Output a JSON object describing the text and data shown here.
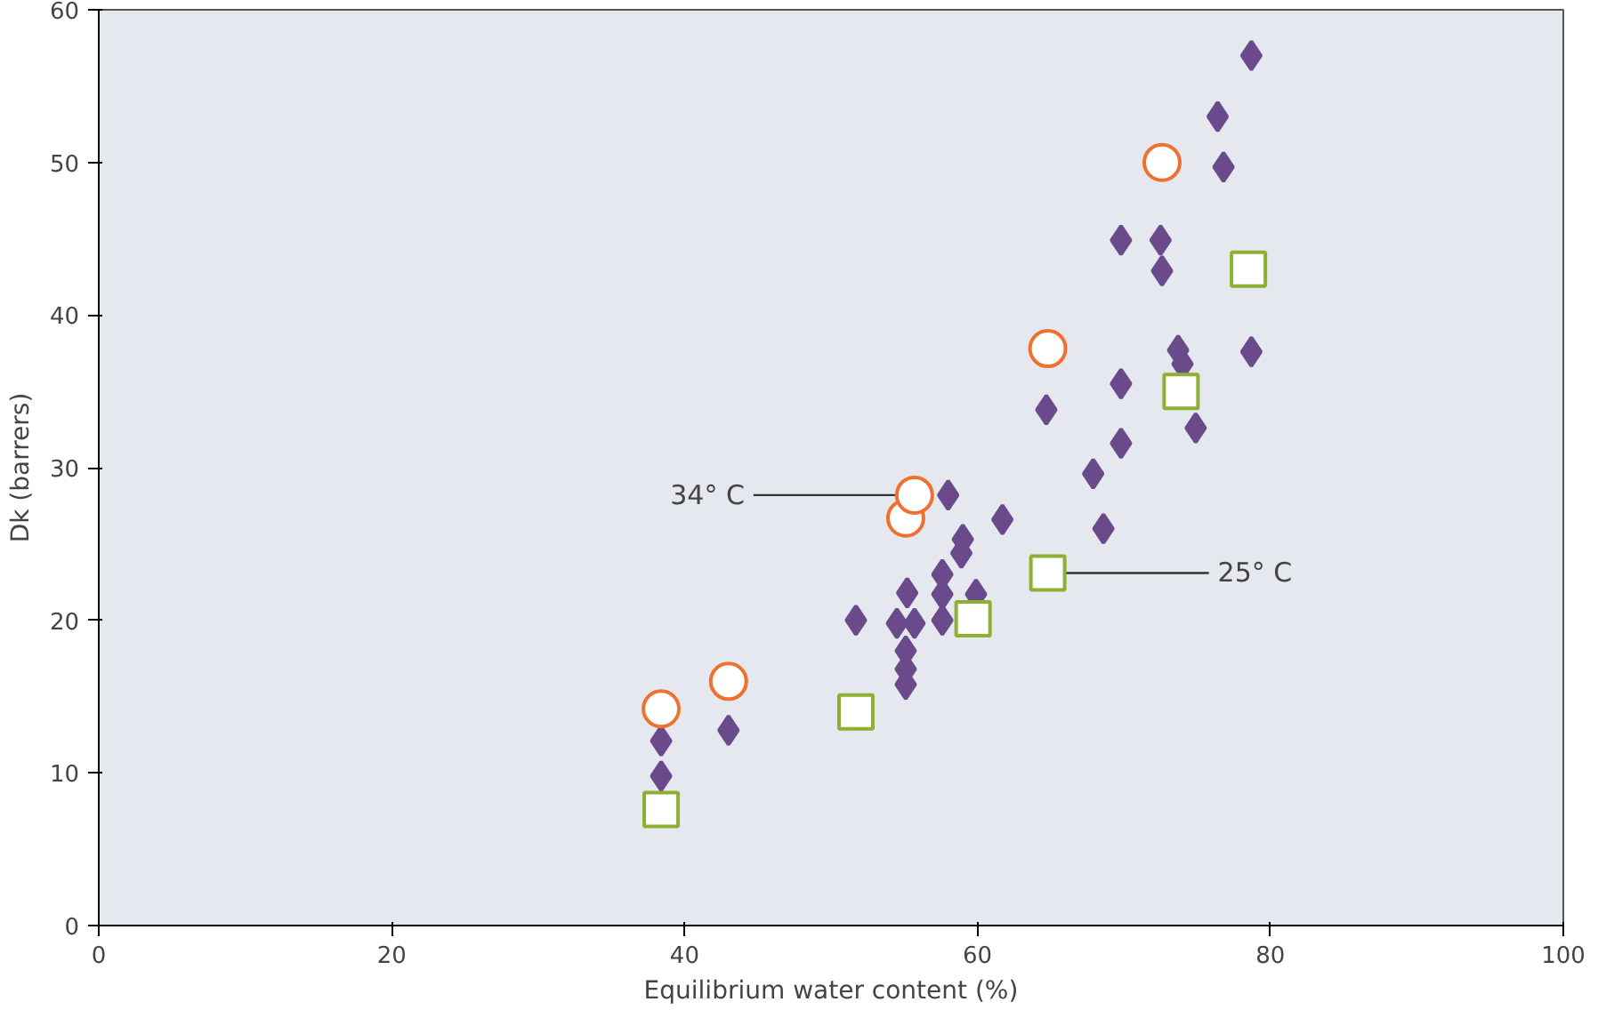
{
  "chart_data": {
    "type": "scatter",
    "xlabel": "Equilibrium water content (%)",
    "ylabel": "Dk (barrers)",
    "xlim": [
      0,
      100
    ],
    "ylim": [
      0,
      60
    ],
    "xticks": [
      0,
      20,
      40,
      60,
      80,
      100
    ],
    "yticks": [
      0,
      10,
      20,
      30,
      40,
      50,
      60
    ],
    "grid": false,
    "series": [
      {
        "color": "#6b4a8c",
        "marker": "diamond",
        "x": [
          78.7,
          76.4,
          76.8,
          69.8,
          72.5,
          72.6,
          73.7,
          74.0,
          78.7,
          69.8,
          64.7,
          74.9,
          69.8,
          67.9,
          61.7,
          68.6,
          58.0,
          55.2,
          57.6,
          57.6,
          57.6,
          51.7,
          54.5,
          55.7,
          55.1,
          55.1,
          55.1,
          38.4,
          38.4,
          43.0,
          58.9,
          59.0,
          59.9
        ],
        "values": [
          57.0,
          53.0,
          49.7,
          44.9,
          44.9,
          42.9,
          37.7,
          36.8,
          37.6,
          35.5,
          33.8,
          32.6,
          31.6,
          29.6,
          26.6,
          26.0,
          28.2,
          21.8,
          23.0,
          21.7,
          20.0,
          20.0,
          19.8,
          19.8,
          18.0,
          16.8,
          15.8,
          12.1,
          9.8,
          12.8,
          24.4,
          25.3,
          21.7
        ]
      },
      {
        "color": "#f07030",
        "marker": "circle",
        "x": [
          38.4,
          43.0,
          55.1,
          55.7,
          64.8,
          72.6
        ],
        "values": [
          14.2,
          16.0,
          26.7,
          28.2,
          37.8,
          50.0
        ]
      },
      {
        "color": "#8db030",
        "marker": "square",
        "x": [
          38.4,
          51.7,
          59.7,
          64.8,
          73.9,
          78.5
        ],
        "values": [
          7.6,
          14.0,
          20.1,
          23.1,
          35.0,
          43.0
        ]
      }
    ],
    "annotations": [
      {
        "text": "34° C",
        "x": 55.7,
        "y": 28.2
      },
      {
        "text": "25° C",
        "x": 64.8,
        "y": 23.1
      }
    ]
  }
}
